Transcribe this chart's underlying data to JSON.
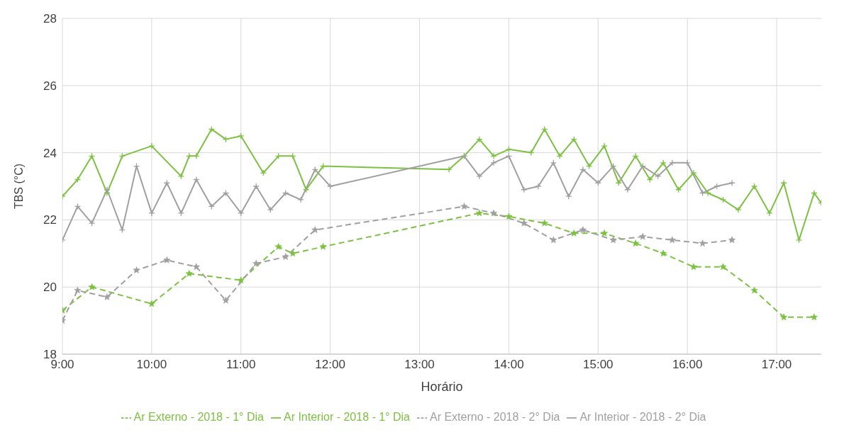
{
  "chart_data": {
    "type": "line",
    "xlabel": "Horário",
    "ylabel": "TBS (°C)",
    "xlim": [
      9,
      17.5
    ],
    "xticks": [
      {
        "value": 9,
        "label": "9:00"
      },
      {
        "value": 10,
        "label": "10:00"
      },
      {
        "value": 11,
        "label": "11:00"
      },
      {
        "value": 12,
        "label": "12:00"
      },
      {
        "value": 13,
        "label": "13:00"
      },
      {
        "value": 14,
        "label": "14:00"
      },
      {
        "value": 15,
        "label": "15:00"
      },
      {
        "value": 16,
        "label": "16:00"
      },
      {
        "value": 17,
        "label": "17:00"
      }
    ],
    "ylim": [
      18,
      28
    ],
    "yticks": [
      18,
      20,
      22,
      24,
      26,
      28
    ],
    "grid": true,
    "legend": "bottom",
    "series": [
      {
        "name": "Ar Externo - 2018 - 1° Dia",
        "color": "#7dc142",
        "line_style": "dashed",
        "marker": "star",
        "x": [
          9,
          9.33,
          10,
          10.42,
          11,
          11.42,
          11.58,
          11.92,
          13.67,
          14,
          14.4,
          14.73,
          15.07,
          15.42,
          15.73,
          16.07,
          16.4,
          16.75,
          17.08,
          17.42
        ],
        "values": [
          19.3,
          20.0,
          19.5,
          20.4,
          20.2,
          21.2,
          21.0,
          21.2,
          22.2,
          22.1,
          21.9,
          21.6,
          21.6,
          21.3,
          21.0,
          20.6,
          20.6,
          19.9,
          19.1,
          19.1
        ]
      },
      {
        "name": "Ar Interior - 2018 - 1° Dia",
        "color": "#7dc142",
        "line_style": "solid",
        "marker": "cross",
        "x": [
          9,
          9.17,
          9.33,
          9.5,
          9.67,
          10,
          10.33,
          10.42,
          10.5,
          10.67,
          10.83,
          11,
          11.25,
          11.42,
          11.58,
          11.73,
          11.92,
          13.33,
          13.5,
          13.67,
          13.83,
          14,
          14.25,
          14.4,
          14.57,
          14.73,
          14.9,
          15.07,
          15.23,
          15.42,
          15.58,
          15.73,
          15.9,
          16.07,
          16.23,
          16.4,
          16.57,
          16.75,
          16.92,
          17.08,
          17.25,
          17.42,
          17.5
        ],
        "values": [
          22.7,
          23.2,
          23.9,
          22.8,
          23.9,
          24.2,
          23.3,
          23.9,
          23.9,
          24.7,
          24.4,
          24.5,
          23.4,
          23.9,
          23.9,
          22.9,
          23.6,
          23.5,
          23.9,
          24.4,
          23.9,
          24.1,
          24.0,
          24.7,
          23.9,
          24.4,
          23.6,
          24.2,
          23.1,
          23.9,
          23.2,
          23.7,
          22.9,
          23.4,
          22.8,
          22.6,
          22.3,
          23.0,
          22.2,
          23.1,
          21.4,
          22.8,
          22.5
        ]
      },
      {
        "name": "Ar Externo - 2018 - 2° Dia",
        "color": "#a0a0a0",
        "line_style": "dashed",
        "marker": "star",
        "x": [
          9,
          9.17,
          9.5,
          9.83,
          10.17,
          10.5,
          10.83,
          11.17,
          11.5,
          11.83,
          13.5,
          13.83,
          14.17,
          14.5,
          14.83,
          15.17,
          15.5,
          15.83,
          16.17,
          16.5
        ],
        "values": [
          19.0,
          19.9,
          19.7,
          20.5,
          20.8,
          20.6,
          19.6,
          20.7,
          20.9,
          21.7,
          22.4,
          22.2,
          21.9,
          21.4,
          21.7,
          21.4,
          21.5,
          21.4,
          21.3,
          21.4
        ]
      },
      {
        "name": "Ar Interior - 2018 - 2° Dia",
        "color": "#a0a0a0",
        "line_style": "solid",
        "marker": "cross",
        "x": [
          9,
          9.17,
          9.33,
          9.5,
          9.67,
          9.83,
          10,
          10.17,
          10.33,
          10.5,
          10.67,
          10.83,
          11,
          11.17,
          11.33,
          11.5,
          11.67,
          11.83,
          12,
          13.5,
          13.67,
          13.83,
          14,
          14.17,
          14.33,
          14.5,
          14.67,
          14.83,
          15,
          15.17,
          15.33,
          15.5,
          15.67,
          15.83,
          16,
          16.17,
          16.33,
          16.5
        ],
        "values": [
          21.4,
          22.4,
          21.9,
          22.9,
          21.7,
          23.6,
          22.2,
          23.1,
          22.2,
          23.2,
          22.4,
          22.8,
          22.2,
          23.0,
          22.3,
          22.8,
          22.6,
          23.5,
          23.0,
          23.9,
          23.3,
          23.7,
          23.9,
          22.9,
          23.0,
          23.7,
          22.7,
          23.5,
          23.1,
          23.6,
          22.9,
          23.6,
          23.3,
          23.7,
          23.7,
          22.8,
          23.0,
          23.1
        ]
      }
    ]
  }
}
